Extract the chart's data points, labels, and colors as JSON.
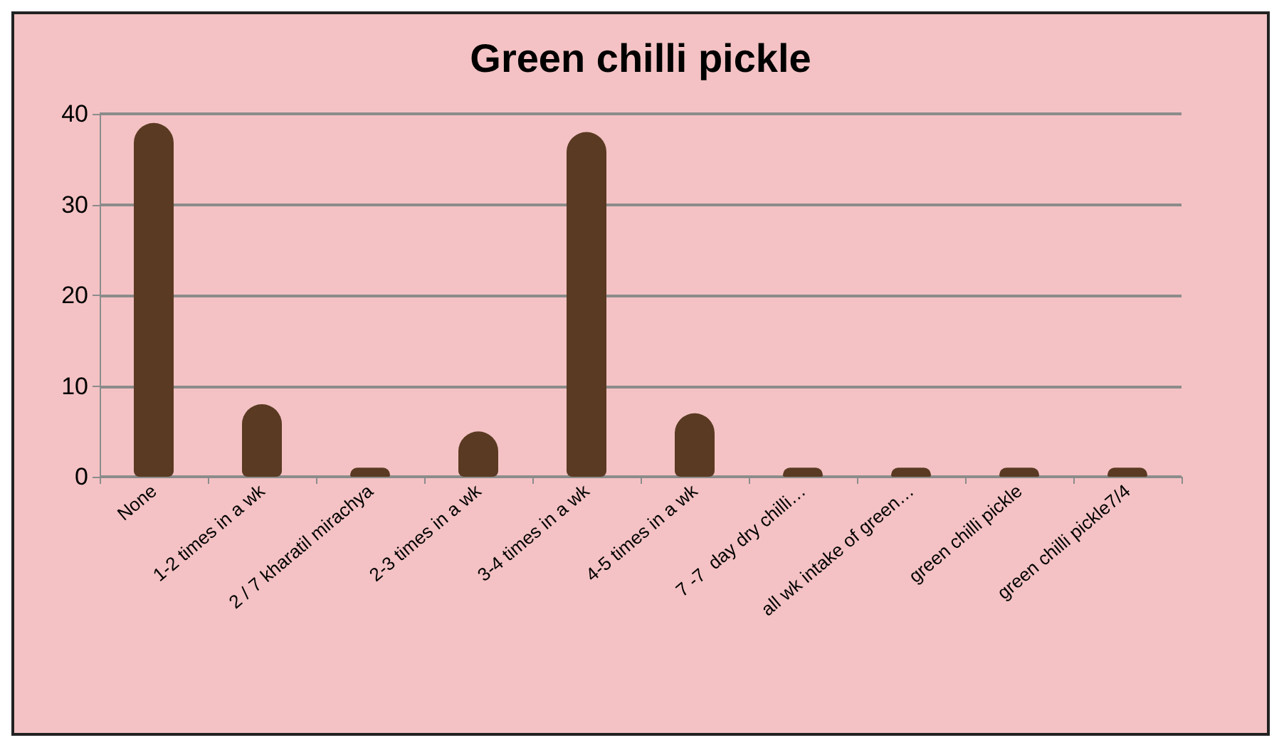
{
  "chart_data": {
    "type": "bar",
    "title": "Green chilli pickle",
    "categories": [
      "None",
      "1-2 times in a wk",
      "2 / 7 kharatil mirachya",
      "2-3 times in a wk",
      "3-4 times in a wk",
      "4-5 times in a wk",
      "7 -7  day dry chilli…",
      "all wk intake of green…",
      "green chilli pickle",
      "green chilli pickle7/4"
    ],
    "values": [
      39,
      8,
      1,
      5,
      38,
      7,
      1,
      1,
      1,
      1
    ],
    "color": "#5a3a22",
    "ylim": [
      0,
      40
    ],
    "yticks": [
      0,
      10,
      20,
      30,
      40
    ],
    "grid": "y"
  }
}
